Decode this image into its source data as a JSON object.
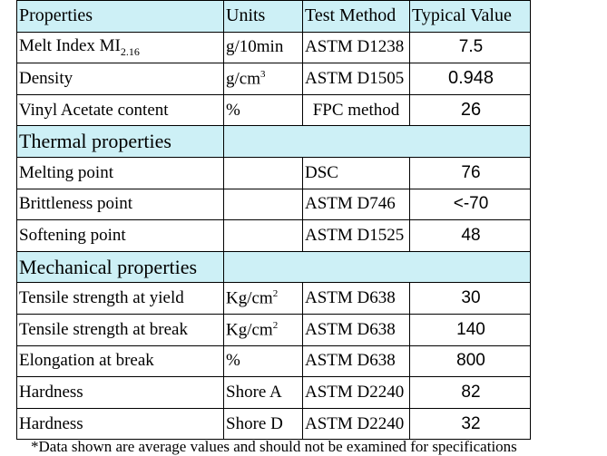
{
  "table": {
    "headers": {
      "properties": "Properties",
      "units": "Units",
      "test_method": "Test Method",
      "typical_value": "Typical Value"
    },
    "general_rows": [
      {
        "property": "Melt Index MI",
        "property_sub": "2.16",
        "unit": "g/10min",
        "method": "ASTM D1238",
        "value": "7.5"
      },
      {
        "property": "Density",
        "unit": "g/cm",
        "unit_sup": "3",
        "method": "ASTM D1505",
        "value": "0.948"
      },
      {
        "property": "Vinyl Acetate content",
        "unit": "%",
        "method": "FPC method",
        "value": "26"
      }
    ],
    "thermal": {
      "title": "Thermal properties",
      "rows": [
        {
          "property": "Melting point",
          "unit": "",
          "method": "DSC",
          "value": "76"
        },
        {
          "property": "Brittleness point",
          "unit": "",
          "method": "ASTM D746",
          "value": "<-70"
        },
        {
          "property": "Softening point",
          "unit": "",
          "method": "ASTM D1525",
          "value": "48"
        }
      ]
    },
    "mechanical": {
      "title": "Mechanical properties",
      "rows": [
        {
          "property": "Tensile strength at yield",
          "unit": "Kg/cm",
          "unit_sup": "2",
          "method": "ASTM D638",
          "value": "30"
        },
        {
          "property": "Tensile strength at break",
          "unit": "Kg/cm",
          "unit_sup": "2",
          "method": "ASTM D638",
          "value": "140"
        },
        {
          "property": "Elongation at break",
          "unit": "%",
          "method": "ASTM D638",
          "value": "800"
        },
        {
          "property": "Hardness",
          "unit": "Shore A",
          "method": "ASTM D2240",
          "value": "82"
        },
        {
          "property": "Hardness",
          "unit": "Shore D",
          "method": "ASTM D2240",
          "value": "32"
        }
      ]
    },
    "section_fill_color": "#cdf0f6"
  },
  "footnote": "*Data shown are average values and should not be examined for specifications"
}
